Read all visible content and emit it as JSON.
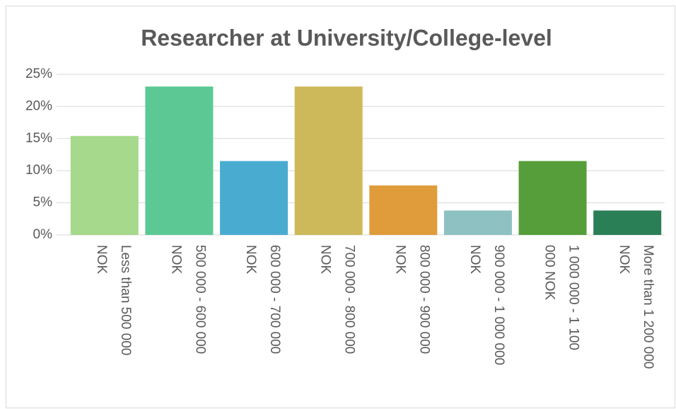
{
  "chart_data": {
    "type": "bar",
    "title": "Researcher at University/College-level",
    "categories": [
      [
        "Less than 500 000",
        "NOK"
      ],
      [
        "500 000 - 600 000",
        "NOK"
      ],
      [
        "600 000 - 700 000",
        "NOK"
      ],
      [
        "700 000 - 800 000",
        "NOK"
      ],
      [
        "800 000 - 900 000",
        "NOK"
      ],
      [
        "900 000 - 1 000 000",
        "NOK"
      ],
      [
        "1 000 000 - 1 100",
        "000 NOK"
      ],
      [
        "More than 1 200 000",
        "NOK"
      ]
    ],
    "values": [
      15.4,
      23.1,
      11.5,
      23.1,
      7.7,
      3.8,
      11.5,
      3.8
    ],
    "colors": [
      "#a6d98b",
      "#5cc995",
      "#4aabd0",
      "#cdb95a",
      "#e09c3a",
      "#8dc1c2",
      "#569e39",
      "#2a7f57"
    ],
    "ylim": [
      0,
      25
    ],
    "yticks": [
      {
        "value": 0,
        "label": "0%"
      },
      {
        "value": 5,
        "label": "5%"
      },
      {
        "value": 10,
        "label": "10%"
      },
      {
        "value": 15,
        "label": "15%"
      },
      {
        "value": 20,
        "label": "20%"
      },
      {
        "value": 25,
        "label": "25%"
      }
    ],
    "grid": true
  }
}
